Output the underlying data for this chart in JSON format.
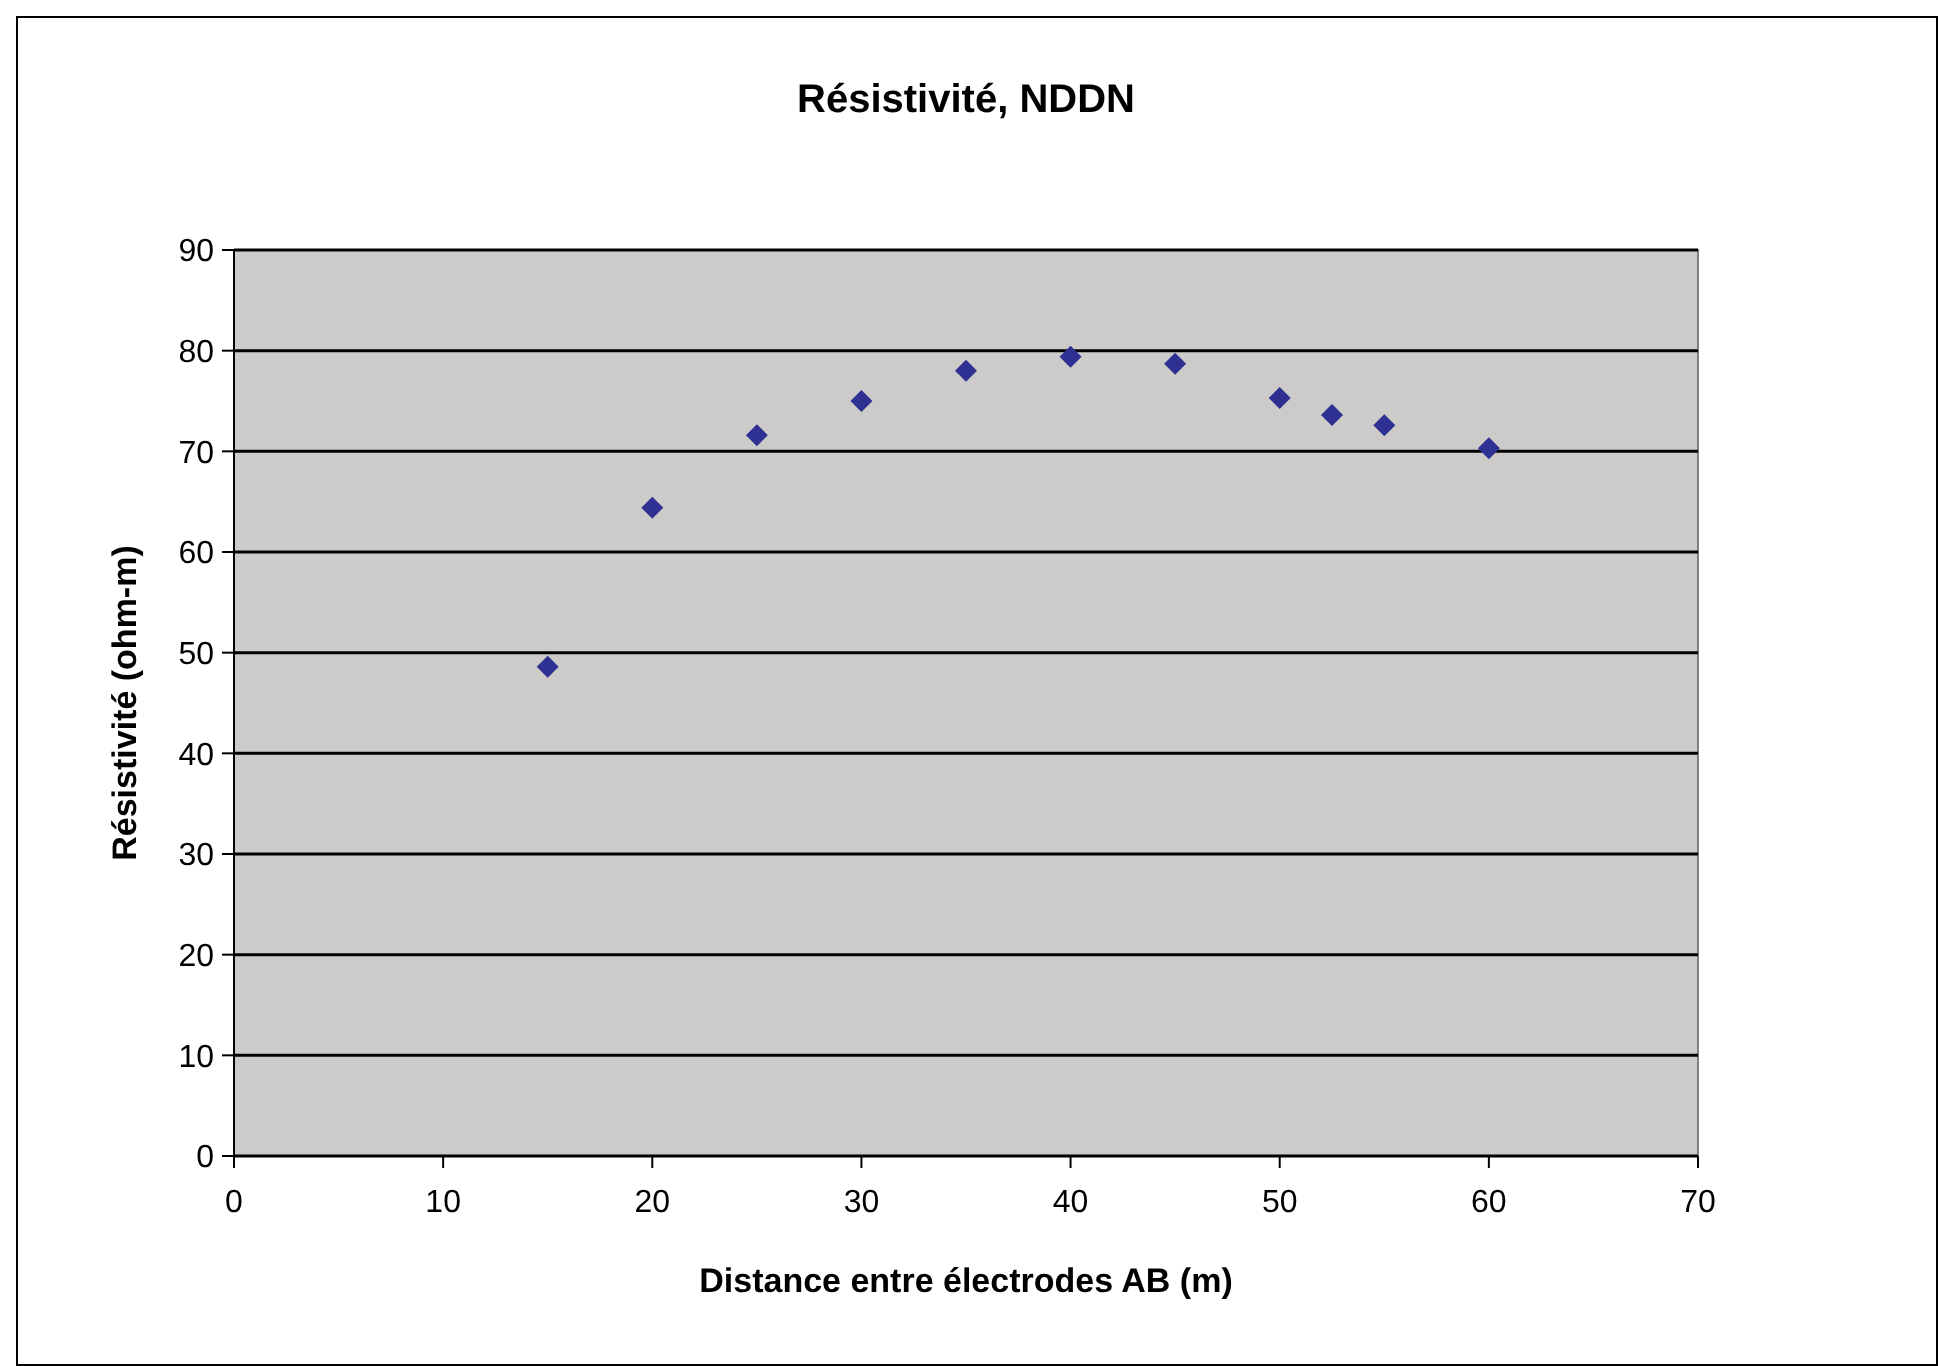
{
  "chart_data": {
    "type": "scatter",
    "title": "Résistivité, NDDN",
    "xlabel": "Distance entre électrodes AB (m)",
    "ylabel": "Résistivité (ohm-m)",
    "x": [
      15,
      20,
      25,
      30,
      35,
      40,
      45,
      50,
      52.5,
      55,
      60
    ],
    "series": [
      {
        "color": "#2e3192",
        "values": [
          48.6,
          64.4,
          71.6,
          75.0,
          78.0,
          79.4,
          78.7,
          75.3,
          73.6,
          72.6,
          70.3
        ]
      }
    ],
    "xlim": [
      0,
      70
    ],
    "xticks": [
      0,
      10,
      20,
      30,
      40,
      50,
      60,
      70
    ],
    "ylim": [
      0,
      90
    ],
    "yticks": [
      0,
      10,
      20,
      30,
      40,
      50,
      60,
      70,
      80,
      90
    ],
    "grid": "y",
    "marker": "diamond"
  }
}
